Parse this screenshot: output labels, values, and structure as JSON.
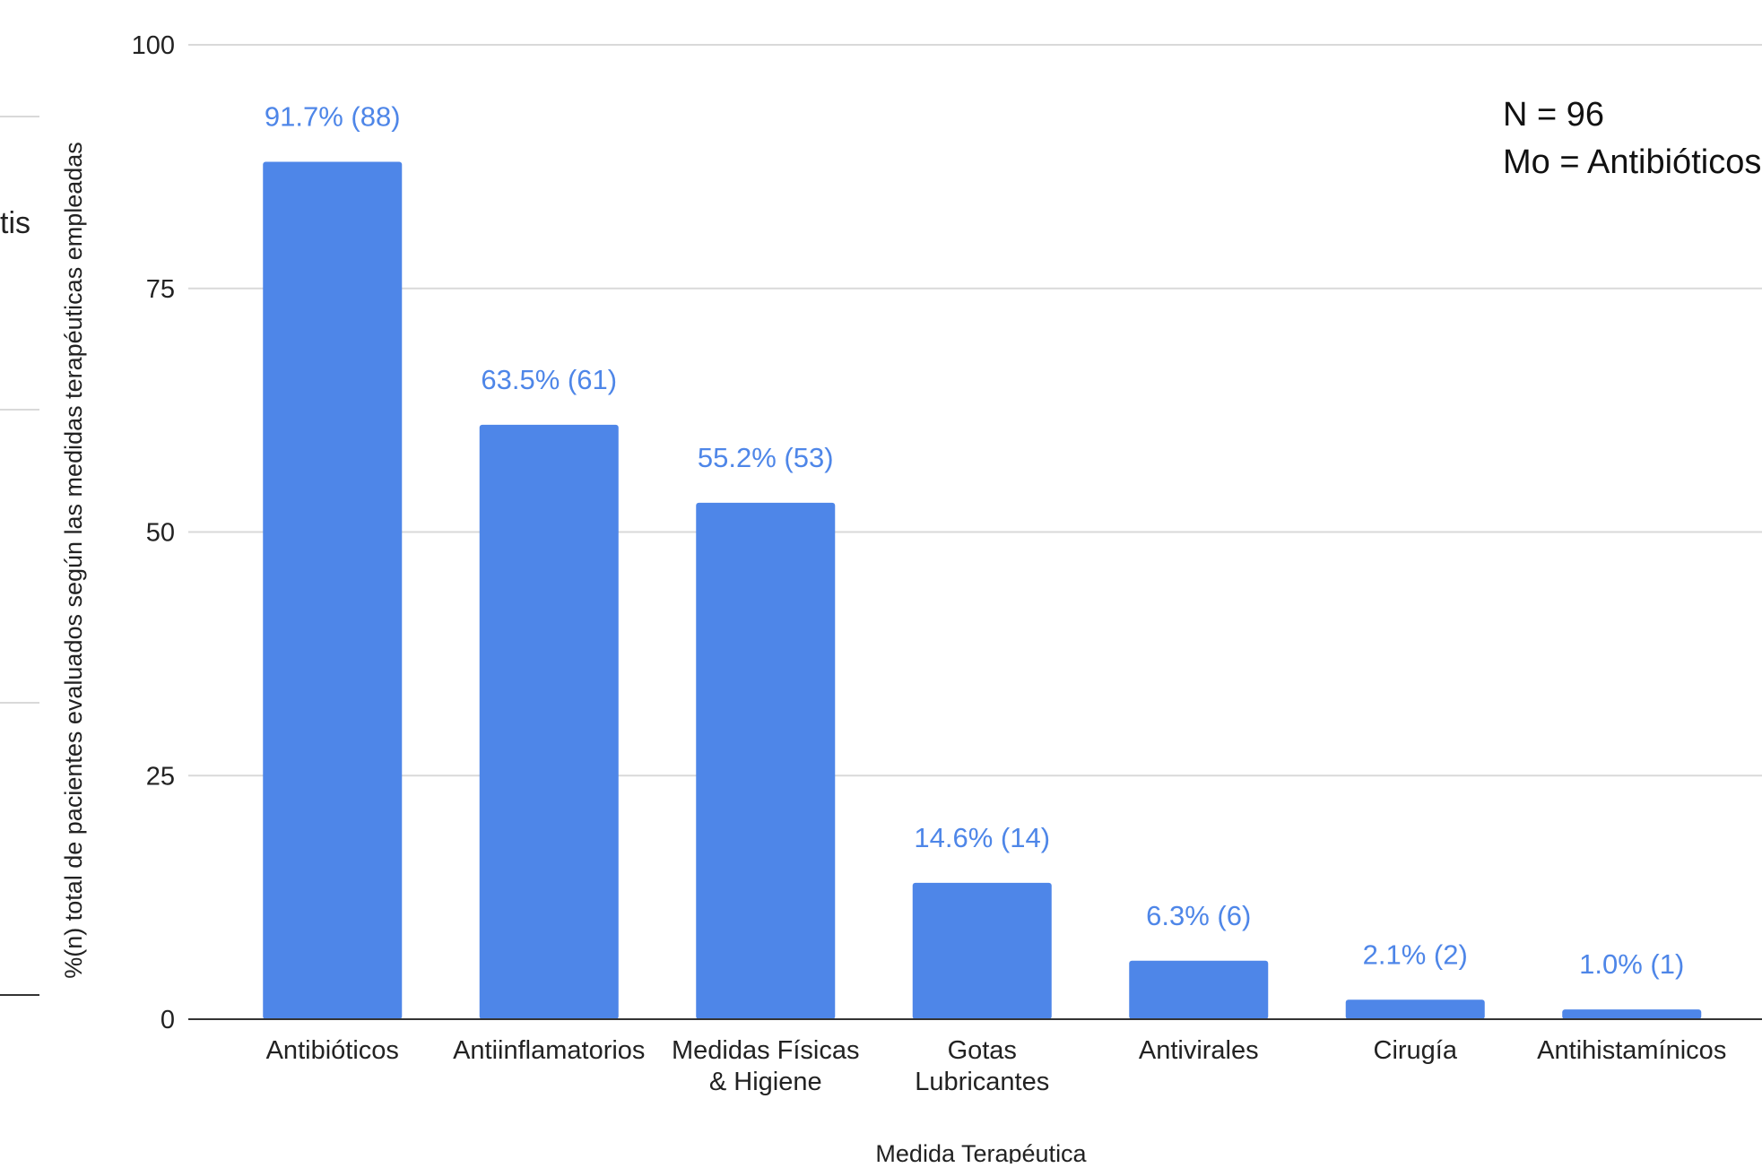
{
  "chart_data": {
    "type": "bar",
    "categories": [
      [
        "Antibióticos"
      ],
      [
        "Antiinflamatorios"
      ],
      [
        "Medidas Físicas",
        "& Higiene"
      ],
      [
        "Gotas",
        "Lubricantes"
      ],
      [
        "Antivirales"
      ],
      [
        "Cirugía"
      ],
      [
        "Antihistamínicos"
      ]
    ],
    "values": [
      88,
      61,
      53,
      14,
      6,
      2,
      1
    ],
    "data_labels": [
      "91.7% (88)",
      "63.5% (61)",
      "55.2% (53)",
      "14.6% (14)",
      "6.3% (6)",
      "2.1% (2)",
      "1.0% (1)"
    ],
    "xlabel": "Medida Terapéutica",
    "ylabel": "%(n) total de pacientes evaluados según las medidas terapéuticas empleadas",
    "ylim": [
      0,
      100
    ],
    "yticks": [
      0,
      25,
      50,
      75,
      100
    ],
    "grid": true,
    "bar_color": "#4e86e8",
    "label_color": "#4e86e8",
    "annotations": [
      "N = 96",
      "Mo = Antibióticos"
    ]
  },
  "left_fragment": "tis"
}
